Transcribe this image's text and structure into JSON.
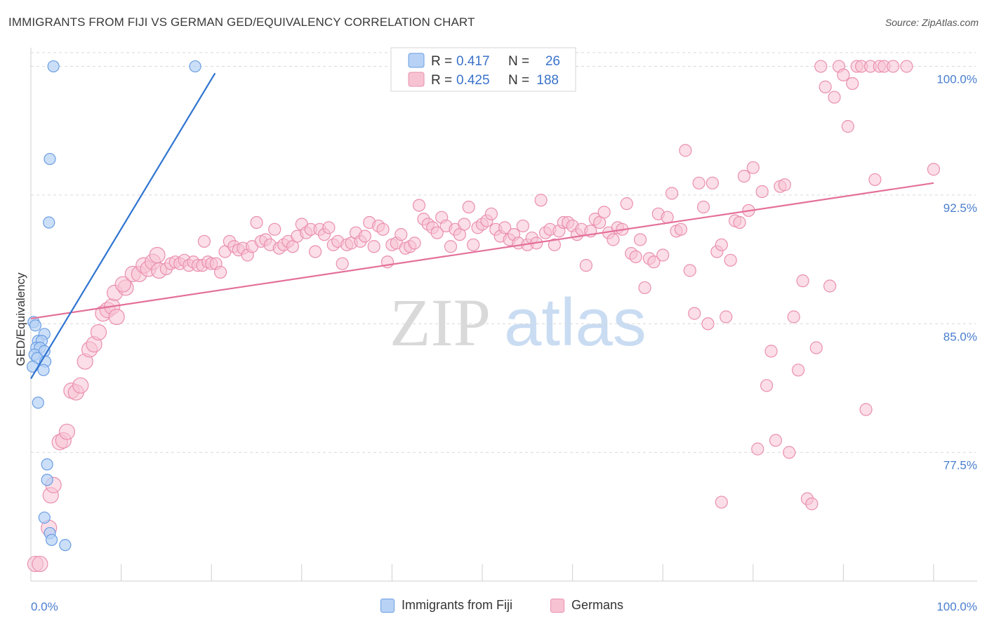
{
  "title": "IMMIGRANTS FROM FIJI VS GERMAN GED/EQUIVALENCY CORRELATION CHART",
  "source": "Source: ZipAtlas.com",
  "watermark": {
    "zip": "ZIP",
    "atlas": "atlas"
  },
  "colors": {
    "blue_fill": "#b7d2f5",
    "blue_stroke": "#6a9ee3",
    "blue_line": "#2f74d0",
    "pink_fill": "#f7c3d3",
    "pink_stroke": "#ea8faf",
    "pink_line": "#e4709a",
    "tick_label": "#4a7fcf",
    "grid": "#d9d9d9"
  },
  "legend_box": {
    "rows": [
      {
        "r_label": "R =",
        "r_value": "0.417",
        "n_label": "N =",
        "n_value": "26"
      },
      {
        "r_label": "R =",
        "r_value": "0.425",
        "n_label": "N =",
        "n_value": "188"
      }
    ]
  },
  "bottom_legend": {
    "items": [
      {
        "label": "Immigrants from Fiji"
      },
      {
        "label": "Germans"
      }
    ]
  },
  "chart_data": {
    "type": "scatter",
    "title": "IMMIGRANTS FROM FIJI VS GERMAN GED/EQUIVALENCY CORRELATION CHART",
    "xlabel": "",
    "ylabel": "GED/Equivalency",
    "xlim": [
      0,
      100
    ],
    "ylim": [
      70.0,
      100.8
    ],
    "x_tick_labels": [
      "0.0%",
      "100.0%"
    ],
    "y_ticks": [
      77.5,
      85.0,
      92.5,
      100.0
    ],
    "y_tick_labels": [
      "77.5%",
      "85.0%",
      "92.5%",
      "100.0%"
    ],
    "grid": true,
    "legend_placement": "top-center",
    "series": [
      {
        "name": "Immigrants from Fiji",
        "r": 0.417,
        "n": 26,
        "trend": {
          "x": [
            0.0,
            20.4
          ],
          "y": [
            81.8,
            99.6
          ]
        },
        "points": [
          [
            2.5,
            100.0
          ],
          [
            18.2,
            100.0
          ],
          [
            2.1,
            94.6
          ],
          [
            2.0,
            90.9
          ],
          [
            0.3,
            85.1
          ],
          [
            0.5,
            84.9
          ],
          [
            1.5,
            84.4
          ],
          [
            0.8,
            84.0
          ],
          [
            1.2,
            84.0
          ],
          [
            0.6,
            83.6
          ],
          [
            1.0,
            83.6
          ],
          [
            1.5,
            83.4
          ],
          [
            0.4,
            83.2
          ],
          [
            0.7,
            83.0
          ],
          [
            1.6,
            82.8
          ],
          [
            0.2,
            82.5
          ],
          [
            1.4,
            82.3
          ],
          [
            0.8,
            80.4
          ],
          [
            1.8,
            76.8
          ],
          [
            1.8,
            75.9
          ],
          [
            1.5,
            73.7
          ],
          [
            2.1,
            72.8
          ],
          [
            2.3,
            72.4
          ],
          [
            3.8,
            72.1
          ]
        ]
      },
      {
        "name": "Germans",
        "r": 0.425,
        "n": 188,
        "trend": {
          "x": [
            0.0,
            100.0
          ],
          "y": [
            85.3,
            93.2
          ]
        },
        "points": [
          [
            0.5,
            71.0
          ],
          [
            1.0,
            71.0
          ],
          [
            2.0,
            73.1
          ],
          [
            2.2,
            75.0
          ],
          [
            2.5,
            75.6
          ],
          [
            3.2,
            78.1
          ],
          [
            3.6,
            78.2
          ],
          [
            4.0,
            78.7
          ],
          [
            4.5,
            81.1
          ],
          [
            5.0,
            81.0
          ],
          [
            5.5,
            81.4
          ],
          [
            6.0,
            82.8
          ],
          [
            6.5,
            83.5
          ],
          [
            7.0,
            83.8
          ],
          [
            7.5,
            84.5
          ],
          [
            8.0,
            85.6
          ],
          [
            8.5,
            85.8
          ],
          [
            9.0,
            86.0
          ],
          [
            9.5,
            85.4
          ],
          [
            9.3,
            86.8
          ],
          [
            10.5,
            87.1
          ],
          [
            10.2,
            87.3
          ],
          [
            11.3,
            87.9
          ],
          [
            12.0,
            87.9
          ],
          [
            12.5,
            88.4
          ],
          [
            13.0,
            88.2
          ],
          [
            13.5,
            88.6
          ],
          [
            14.0,
            89.0
          ],
          [
            14.2,
            88.1
          ],
          [
            15.0,
            88.2
          ],
          [
            15.5,
            88.5
          ],
          [
            16.0,
            88.6
          ],
          [
            16.5,
            88.5
          ],
          [
            17.0,
            88.7
          ],
          [
            17.5,
            88.4
          ],
          [
            18.0,
            88.6
          ],
          [
            18.5,
            88.4
          ],
          [
            19.0,
            88.4
          ],
          [
            19.2,
            89.8
          ],
          [
            19.6,
            88.6
          ],
          [
            20.0,
            88.5
          ],
          [
            20.5,
            88.5
          ],
          [
            21.0,
            88.0
          ],
          [
            21.5,
            89.2
          ],
          [
            22.0,
            89.8
          ],
          [
            22.5,
            89.5
          ],
          [
            23.0,
            89.3
          ],
          [
            23.5,
            89.4
          ],
          [
            24.0,
            89.0
          ],
          [
            24.5,
            89.5
          ],
          [
            25.0,
            90.9
          ],
          [
            25.5,
            89.8
          ],
          [
            26.0,
            89.9
          ],
          [
            26.5,
            89.6
          ],
          [
            27.0,
            90.5
          ],
          [
            27.5,
            89.4
          ],
          [
            28.0,
            89.6
          ],
          [
            28.5,
            89.8
          ],
          [
            29.0,
            89.5
          ],
          [
            29.5,
            90.1
          ],
          [
            30.0,
            90.8
          ],
          [
            30.5,
            90.3
          ],
          [
            31.0,
            90.5
          ],
          [
            31.5,
            89.2
          ],
          [
            32.0,
            90.5
          ],
          [
            32.5,
            90.2
          ],
          [
            33.0,
            90.6
          ],
          [
            33.5,
            89.6
          ],
          [
            34.0,
            89.8
          ],
          [
            34.5,
            88.5
          ],
          [
            35.0,
            89.6
          ],
          [
            35.5,
            89.7
          ],
          [
            36.0,
            90.3
          ],
          [
            36.5,
            89.8
          ],
          [
            37.0,
            90.1
          ],
          [
            37.5,
            90.9
          ],
          [
            38.0,
            89.5
          ],
          [
            38.5,
            90.7
          ],
          [
            39.0,
            90.5
          ],
          [
            39.5,
            88.6
          ],
          [
            40.0,
            89.6
          ],
          [
            40.5,
            89.7
          ],
          [
            41.0,
            90.2
          ],
          [
            41.5,
            89.4
          ],
          [
            42.0,
            89.5
          ],
          [
            42.5,
            89.7
          ],
          [
            43.0,
            91.9
          ],
          [
            43.5,
            91.1
          ],
          [
            44.0,
            90.8
          ],
          [
            44.5,
            90.6
          ],
          [
            45.0,
            90.3
          ],
          [
            45.5,
            91.2
          ],
          [
            46.0,
            90.7
          ],
          [
            46.5,
            89.5
          ],
          [
            47.0,
            90.5
          ],
          [
            47.5,
            90.2
          ],
          [
            48.0,
            90.8
          ],
          [
            48.5,
            91.8
          ],
          [
            49.0,
            89.6
          ],
          [
            49.5,
            90.6
          ],
          [
            50.0,
            90.8
          ],
          [
            50.5,
            91.0
          ],
          [
            51.0,
            91.4
          ],
          [
            51.5,
            90.5
          ],
          [
            52.0,
            90.1
          ],
          [
            52.5,
            90.6
          ],
          [
            53.0,
            89.9
          ],
          [
            53.5,
            90.2
          ],
          [
            54.0,
            89.7
          ],
          [
            54.5,
            90.7
          ],
          [
            55.0,
            89.6
          ],
          [
            55.5,
            90.0
          ],
          [
            56.0,
            89.7
          ],
          [
            56.5,
            92.2
          ],
          [
            57.0,
            90.3
          ],
          [
            57.5,
            90.5
          ],
          [
            58.0,
            89.6
          ],
          [
            58.5,
            90.4
          ],
          [
            59.0,
            90.9
          ],
          [
            59.5,
            90.9
          ],
          [
            60.0,
            90.7
          ],
          [
            60.5,
            90.2
          ],
          [
            61.0,
            90.5
          ],
          [
            61.5,
            88.4
          ],
          [
            62.0,
            90.4
          ],
          [
            62.5,
            91.1
          ],
          [
            63.0,
            90.9
          ],
          [
            63.5,
            91.5
          ],
          [
            64.0,
            90.3
          ],
          [
            64.5,
            89.9
          ],
          [
            65.0,
            90.6
          ],
          [
            65.5,
            90.5
          ],
          [
            66.0,
            92.0
          ],
          [
            66.5,
            89.1
          ],
          [
            67.0,
            88.9
          ],
          [
            67.5,
            89.9
          ],
          [
            68.0,
            87.1
          ],
          [
            68.5,
            88.8
          ],
          [
            69.0,
            88.6
          ],
          [
            69.5,
            91.4
          ],
          [
            70.0,
            89.0
          ],
          [
            70.5,
            91.2
          ],
          [
            71.0,
            92.6
          ],
          [
            71.5,
            90.4
          ],
          [
            72.0,
            90.5
          ],
          [
            72.5,
            95.1
          ],
          [
            73.0,
            88.1
          ],
          [
            73.5,
            85.6
          ],
          [
            74.0,
            93.2
          ],
          [
            74.5,
            91.8
          ],
          [
            75.0,
            85.0
          ],
          [
            75.5,
            93.2
          ],
          [
            76.0,
            89.2
          ],
          [
            76.5,
            89.6
          ],
          [
            77.0,
            85.4
          ],
          [
            77.5,
            88.7
          ],
          [
            78.0,
            91.0
          ],
          [
            78.5,
            90.9
          ],
          [
            79.0,
            93.6
          ],
          [
            79.5,
            91.6
          ],
          [
            80.0,
            94.1
          ],
          [
            80.5,
            77.7
          ],
          [
            81.0,
            92.7
          ],
          [
            81.5,
            81.4
          ],
          [
            82.0,
            83.4
          ],
          [
            82.5,
            78.2
          ],
          [
            83.0,
            93.0
          ],
          [
            83.5,
            93.1
          ],
          [
            84.0,
            77.5
          ],
          [
            84.5,
            85.4
          ],
          [
            85.0,
            82.3
          ],
          [
            85.5,
            87.5
          ],
          [
            86.0,
            74.8
          ],
          [
            86.5,
            74.5
          ],
          [
            87.0,
            83.6
          ],
          [
            87.5,
            100.0
          ],
          [
            88.0,
            98.8
          ],
          [
            88.5,
            87.2
          ],
          [
            89.0,
            98.2
          ],
          [
            89.5,
            100.0
          ],
          [
            90.0,
            99.5
          ],
          [
            90.5,
            96.5
          ],
          [
            91.0,
            99.0
          ],
          [
            91.5,
            100.0
          ],
          [
            92.0,
            100.0
          ],
          [
            92.5,
            80.0
          ],
          [
            93.0,
            100.0
          ],
          [
            93.5,
            93.4
          ],
          [
            94.0,
            100.0
          ],
          [
            94.5,
            100.0
          ],
          [
            95.5,
            100.0
          ],
          [
            97.0,
            100.0
          ],
          [
            100.0,
            94.0
          ],
          [
            76.5,
            74.6
          ]
        ]
      }
    ]
  }
}
